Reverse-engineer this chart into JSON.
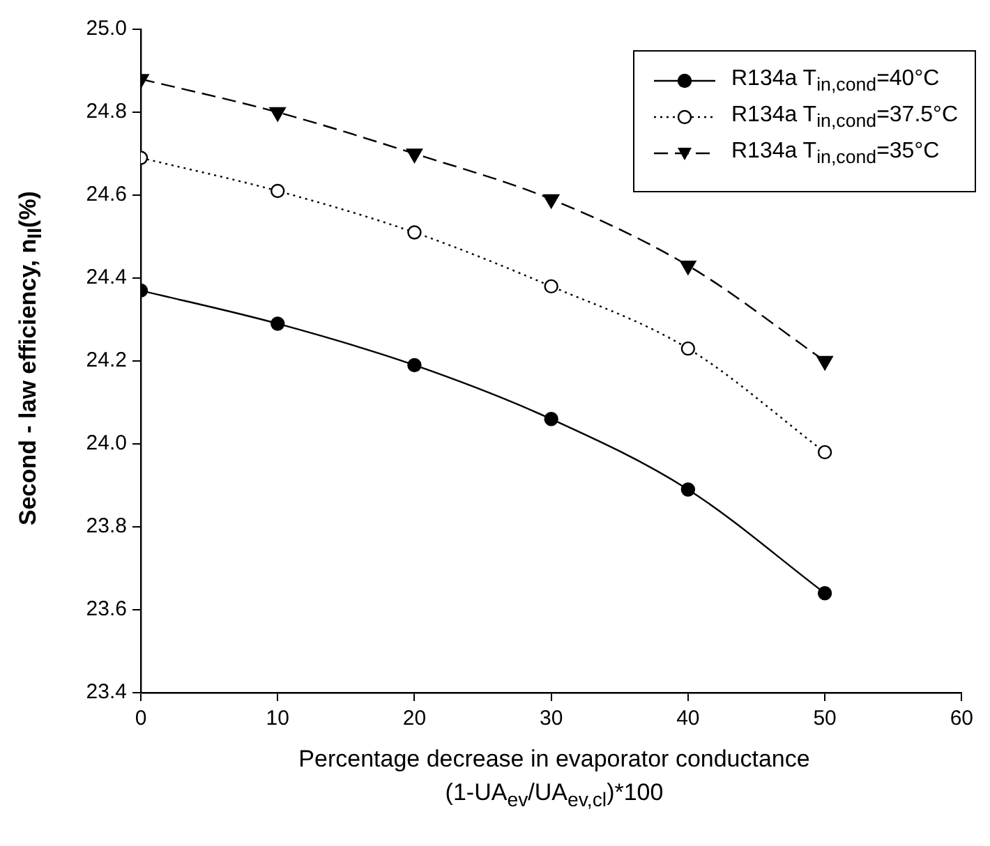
{
  "chart_data": {
    "type": "line",
    "xlabel": "Percentage decrease in evaporator conductance\n(1-UA$_{ev}$/UA$_{ev,cl}$)*100",
    "ylabel": "Second - law efficiency, n$_{II}$(%)",
    "x": [
      0,
      10,
      20,
      30,
      40,
      50
    ],
    "xlim": [
      0,
      60
    ],
    "xticks": [
      0,
      10,
      20,
      30,
      40,
      50,
      60
    ],
    "ylim": [
      23.4,
      25.0
    ],
    "yticks": [
      {
        "value": 23.4,
        "label": "23.4"
      },
      {
        "value": 23.6,
        "label": "23.6"
      },
      {
        "value": 23.8,
        "label": "23.8"
      },
      {
        "value": 24.0,
        "label": "24.0"
      },
      {
        "value": 24.2,
        "label": "24.2"
      },
      {
        "value": 24.4,
        "label": "24.4"
      },
      {
        "value": 24.6,
        "label": "24.6"
      },
      {
        "value": 24.8,
        "label": "24.8"
      },
      {
        "value": 25.0,
        "label": "25.0"
      }
    ],
    "grid": false,
    "legend": "top right",
    "series": [
      {
        "name": "R134a T$_{in,cond}$=40°C",
        "color": "#000000",
        "marker": "circle",
        "line_style": "solid",
        "values": [
          24.37,
          24.29,
          24.19,
          24.06,
          23.89,
          23.64
        ]
      },
      {
        "name": "R134a T$_{in,cond}$=37.5°C",
        "color": "#000000",
        "marker": "open_circle",
        "line_style": "dotted",
        "values": [
          24.69,
          24.61,
          24.51,
          24.38,
          24.23,
          23.98
        ]
      },
      {
        "name": "R134a T$_{in,cond}$=35°C",
        "color": "#000000",
        "marker": "triangle_down",
        "line_style": "dashed",
        "values": [
          24.88,
          24.8,
          24.7,
          24.59,
          24.43,
          24.2
        ]
      }
    ]
  }
}
